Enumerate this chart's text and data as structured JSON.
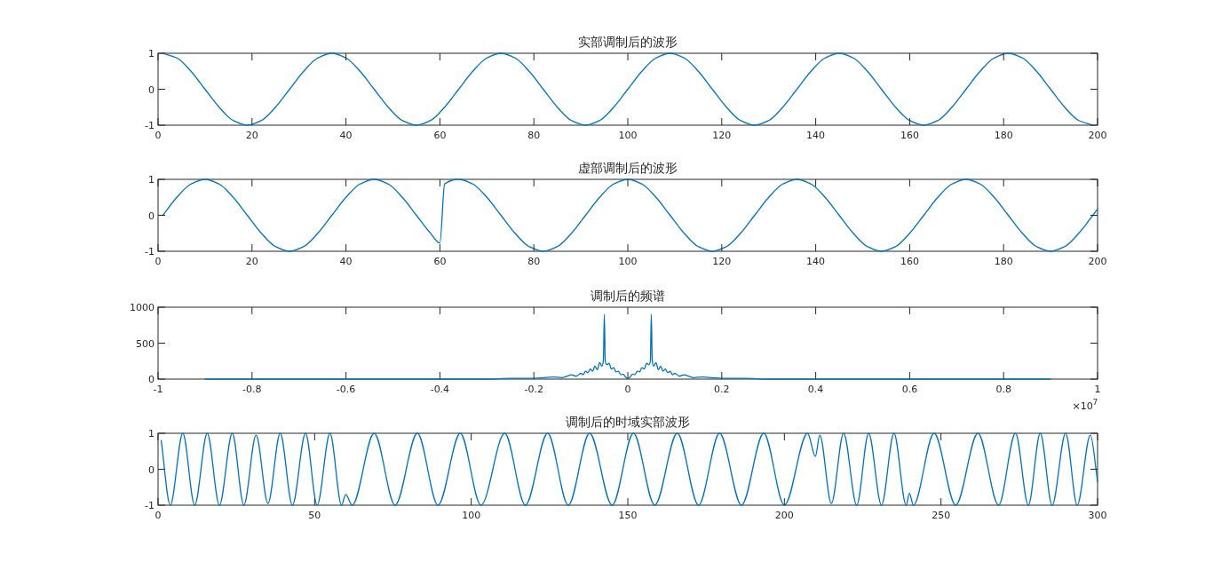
{
  "chart_data": [
    {
      "type": "line",
      "title": "实部调制后的波形",
      "xlim": [
        0,
        200
      ],
      "ylim": [
        -1,
        1
      ],
      "xticks": [
        0,
        20,
        40,
        60,
        80,
        100,
        120,
        140,
        160,
        180,
        200
      ],
      "yticks": [
        -1,
        0,
        1
      ],
      "x": [
        1,
        4,
        7,
        10,
        13,
        16,
        19,
        22,
        25,
        28,
        31,
        34,
        37,
        40,
        43,
        46,
        49,
        52,
        55,
        58,
        61,
        64,
        67,
        70,
        73,
        76,
        79,
        82,
        85,
        88,
        91,
        94,
        97,
        100,
        103,
        106,
        109,
        112,
        115,
        118,
        121,
        124,
        127,
        130,
        133,
        136,
        139,
        142,
        145,
        148,
        151,
        154,
        157,
        160,
        163,
        166,
        169,
        172,
        175,
        178,
        181,
        184,
        187,
        190,
        193,
        196,
        199
      ],
      "series": [
        {
          "color": "#0072bd",
          "values": [
            1,
            0.87,
            0.5,
            0,
            -0.5,
            -0.87,
            -1,
            -0.87,
            -0.5,
            0,
            0.5,
            0.87,
            1,
            0.87,
            0.5,
            0,
            -0.5,
            -0.87,
            -1,
            -0.87,
            -0.5,
            0,
            0.5,
            0.87,
            1,
            0.87,
            0.5,
            0,
            -0.5,
            -0.87,
            -1,
            -0.87,
            -0.5,
            0,
            0.5,
            0.87,
            1,
            0.87,
            0.5,
            0,
            -0.5,
            -0.87,
            -1,
            -0.87,
            -0.5,
            0,
            0.5,
            0.87,
            1,
            0.87,
            0.5,
            0,
            -0.5,
            -0.87,
            -1,
            -0.87,
            -0.5,
            0,
            0.5,
            0.87,
            1,
            0.87,
            0.5,
            0,
            -0.5,
            -0.87,
            -1
          ]
        }
      ]
    },
    {
      "type": "line",
      "title": "虚部调制后的波形",
      "xlim": [
        0,
        200
      ],
      "ylim": [
        -1,
        1
      ],
      "xticks": [
        0,
        20,
        40,
        60,
        80,
        100,
        120,
        140,
        160,
        180,
        200
      ],
      "yticks": [
        -1,
        0,
        1
      ],
      "x": [
        1,
        4,
        7,
        10,
        13,
        16,
        19,
        22,
        25,
        28,
        31,
        34,
        37,
        40,
        43,
        46,
        49,
        52,
        55,
        58,
        60,
        61,
        64,
        67,
        70,
        73,
        76,
        79,
        82,
        85,
        88,
        91,
        94,
        97,
        100,
        103,
        106,
        109,
        112,
        115,
        118,
        121,
        124,
        127,
        130,
        133,
        136,
        139,
        142,
        145,
        148,
        151,
        154,
        157,
        160,
        163,
        166,
        169,
        172,
        175,
        178,
        181,
        184,
        187,
        190,
        193,
        196,
        199,
        200
      ],
      "series": [
        {
          "color": "#0072bd",
          "values": [
            0,
            0.5,
            0.87,
            1,
            0.87,
            0.5,
            0,
            -0.5,
            -0.87,
            -1,
            -0.87,
            -0.5,
            0,
            0.5,
            0.87,
            1,
            0.87,
            0.5,
            0,
            -0.5,
            -0.77,
            0.87,
            1,
            0.87,
            0.5,
            0,
            -0.5,
            -0.87,
            -1,
            -0.87,
            -0.5,
            0,
            0.5,
            0.87,
            1,
            0.87,
            0.5,
            0,
            -0.5,
            -0.87,
            -1,
            -0.87,
            -0.5,
            0,
            0.5,
            0.87,
            1,
            0.87,
            0.5,
            0,
            -0.5,
            -0.87,
            -1,
            -0.87,
            -0.5,
            0,
            0.5,
            0.87,
            1,
            0.87,
            0.5,
            0,
            -0.5,
            -0.87,
            -1,
            -0.87,
            -0.5,
            0,
            0.17
          ]
        }
      ]
    },
    {
      "type": "line",
      "title": "调制后的频谱",
      "xlim": [
        -1,
        1
      ],
      "ylim": [
        0,
        1000
      ],
      "yticks": [
        0,
        500,
        1000
      ],
      "xticks": [
        -1,
        -0.8,
        -0.6,
        -0.4,
        -0.2,
        0,
        0.2,
        0.4,
        0.6,
        0.8,
        1
      ],
      "annotations": [
        "×10$^{7}$"
      ],
      "x": [
        -0.9,
        -0.8,
        -0.6,
        -0.4,
        -0.3,
        -0.25,
        -0.2,
        -0.18,
        -0.16,
        -0.14,
        -0.13,
        -0.12,
        -0.11,
        -0.1,
        -0.095,
        -0.09,
        -0.085,
        -0.08,
        -0.075,
        -0.07,
        -0.065,
        -0.06,
        -0.055,
        -0.052,
        -0.05,
        -0.048,
        -0.045,
        -0.04,
        -0.035,
        -0.03,
        -0.025,
        -0.02,
        -0.015,
        -0.01,
        -0.005,
        0,
        0.005,
        0.01,
        0.015,
        0.02,
        0.025,
        0.03,
        0.035,
        0.04,
        0.045,
        0.048,
        0.05,
        0.052,
        0.055,
        0.06,
        0.065,
        0.07,
        0.075,
        0.08,
        0.085,
        0.09,
        0.095,
        0.1,
        0.11,
        0.12,
        0.13,
        0.14,
        0.16,
        0.18,
        0.2,
        0.25,
        0.3,
        0.4,
        0.6,
        0.8,
        0.9
      ],
      "series": [
        {
          "color": "#0072bd",
          "values": [
            0,
            0,
            0,
            0,
            0,
            10,
            10,
            20,
            30,
            20,
            40,
            60,
            40,
            80,
            60,
            110,
            90,
            140,
            110,
            180,
            130,
            230,
            180,
            260,
            900,
            250,
            200,
            220,
            140,
            160,
            100,
            110,
            60,
            70,
            30,
            10,
            30,
            70,
            60,
            110,
            100,
            160,
            140,
            220,
            200,
            250,
            900,
            260,
            180,
            230,
            130,
            180,
            110,
            140,
            90,
            110,
            60,
            80,
            40,
            60,
            40,
            20,
            30,
            20,
            10,
            10,
            0,
            0,
            0,
            0,
            0
          ]
        }
      ]
    },
    {
      "type": "line",
      "title": "调制后的时域实部波形",
      "xlim": [
        0,
        300
      ],
      "ylim": [
        -1,
        1
      ],
      "xticks": [
        0,
        50,
        100,
        150,
        200,
        250,
        300
      ],
      "yticks": [
        -1,
        0,
        1
      ],
      "x": [
        1,
        3.9,
        7.9,
        11.7,
        15.7,
        19.6,
        23.7,
        27.4,
        31.3,
        35.1,
        39,
        42.9,
        47.1,
        50.8,
        54.9,
        58.6,
        59.9,
        62,
        69,
        75.7,
        82.8,
        89.4,
        96.5,
        103.1,
        110.7,
        117.3,
        124.4,
        131,
        137.8,
        145,
        151.8,
        158.6,
        165.8,
        172.6,
        179.3,
        186.3,
        193.4,
        200,
        207.4,
        209.9,
        211.3,
        215,
        218.9,
        223.1,
        226.9,
        231,
        235,
        238.9,
        239.9,
        241.2,
        247.8,
        254.7,
        261.8,
        268.4,
        273.8,
        277.9,
        281.7,
        285.5,
        289.8,
        293.5,
        297.7,
        300
      ],
      "series": [
        {
          "color": "#0072bd",
          "values": [
            0.8,
            -1,
            1,
            -1,
            1,
            -1,
            1,
            -1,
            0.95,
            -0.95,
            1,
            -1,
            1,
            -1,
            1,
            -1,
            -0.7,
            -1,
            1,
            -1,
            1,
            -1,
            1,
            -1,
            1,
            -1,
            1,
            -1,
            1,
            -1,
            1,
            -1,
            1,
            -1,
            1,
            -1,
            1,
            -1,
            1,
            0.36,
            0.95,
            -0.95,
            1,
            -1,
            1,
            -1,
            1,
            -1,
            -0.67,
            -1,
            1,
            -1,
            1,
            -1,
            1,
            -1,
            1,
            -1,
            1,
            -1,
            0.95,
            -0.34
          ]
        }
      ]
    }
  ]
}
